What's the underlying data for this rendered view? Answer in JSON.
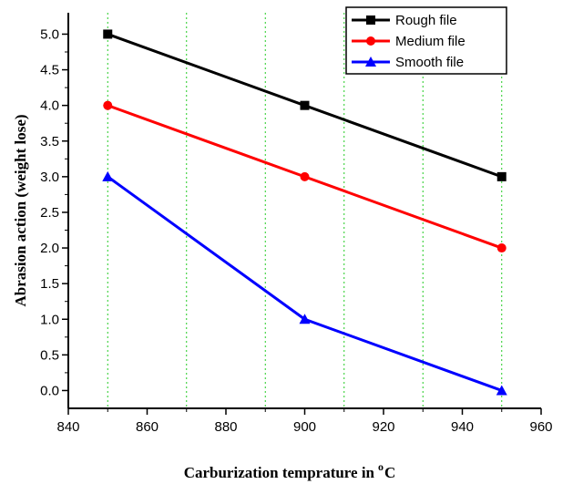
{
  "chart_data": {
    "type": "line",
    "title": "",
    "xlabel": "Carburization temprature in",
    "xlabel_sup": "o",
    "xlabel_tail": "C",
    "ylabel": "Abrasion  action (weight lose)",
    "xlim": [
      840,
      960
    ],
    "ylim": [
      -0.25,
      5.3
    ],
    "x_ticks": [
      840,
      860,
      880,
      900,
      920,
      940,
      960
    ],
    "y_ticks": [
      0.0,
      0.5,
      1.0,
      1.5,
      2.0,
      2.5,
      3.0,
      3.5,
      4.0,
      4.5,
      5.0
    ],
    "y_tick_labels": [
      "0.0",
      "0.5",
      "1.0",
      "1.5",
      "2.0",
      "2.5",
      "3.0",
      "3.5",
      "4.0",
      "4.5",
      "5.0"
    ],
    "grid_x": [
      850,
      870,
      890,
      910,
      930,
      950
    ],
    "grid": "vertical dotted green",
    "legend_position": "top-right",
    "series": [
      {
        "name": "Rough file",
        "color": "#000000",
        "marker": "square",
        "x": [
          850,
          900,
          950
        ],
        "y": [
          5.0,
          4.0,
          3.0
        ]
      },
      {
        "name": "Medium file",
        "color": "#ff0000",
        "marker": "circle",
        "x": [
          850,
          900,
          950
        ],
        "y": [
          4.0,
          3.0,
          2.0
        ]
      },
      {
        "name": "Smooth file",
        "color": "#0000ff",
        "marker": "triangle",
        "x": [
          850,
          900,
          950
        ],
        "y": [
          3.0,
          1.0,
          0.0
        ]
      }
    ]
  }
}
